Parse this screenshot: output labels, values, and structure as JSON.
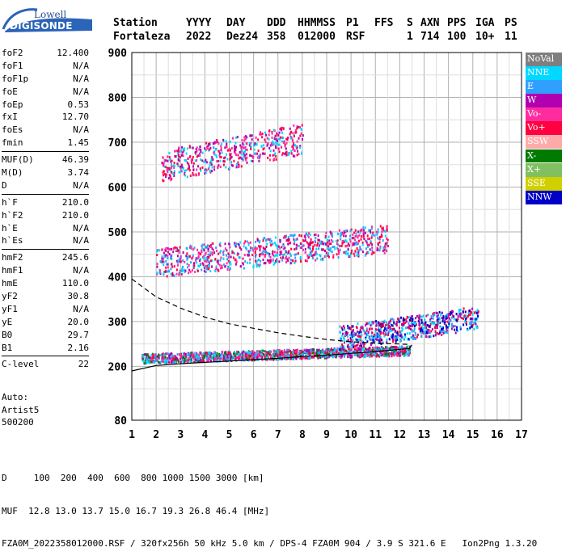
{
  "logo": {
    "line1": "Lowell",
    "line2": "DIGISONDE"
  },
  "header": {
    "row1": [
      "Station",
      "YYYY",
      "DAY",
      "DDD",
      "HHMMSS",
      "P1",
      "FFS",
      "S",
      "AXN",
      "PPS",
      "IGA",
      "PS"
    ],
    "row2": [
      "Fortaleza",
      "2022",
      "Dez24",
      "358",
      "012000",
      "RSF",
      "",
      "1",
      "714",
      "100",
      "10+",
      "11"
    ]
  },
  "params": [
    [
      {
        "label": "foF2",
        "value": "12.400"
      },
      {
        "label": "foF1",
        "value": "N/A"
      },
      {
        "label": "foF1p",
        "value": "N/A"
      },
      {
        "label": "foE",
        "value": "N/A"
      },
      {
        "label": "foEp",
        "value": "0.53"
      },
      {
        "label": "fxI",
        "value": "12.70"
      },
      {
        "label": "foEs",
        "value": "N/A"
      },
      {
        "label": "fmin",
        "value": "1.45"
      }
    ],
    [
      {
        "label": "MUF(D)",
        "value": "46.39"
      },
      {
        "label": "M(D)",
        "value": "3.74"
      },
      {
        "label": "D",
        "value": "N/A"
      }
    ],
    [
      {
        "label": "h`F",
        "value": "210.0"
      },
      {
        "label": "h`F2",
        "value": "210.0"
      },
      {
        "label": "h`E",
        "value": "N/A"
      },
      {
        "label": "h`Es",
        "value": "N/A"
      }
    ],
    [
      {
        "label": "hmF2",
        "value": "245.6"
      },
      {
        "label": "hmF1",
        "value": "N/A"
      },
      {
        "label": "hmE",
        "value": "110.0"
      },
      {
        "label": "yF2",
        "value": "30.8"
      },
      {
        "label": "yF1",
        "value": "N/A"
      },
      {
        "label": "yE",
        "value": "20.0"
      },
      {
        "label": "B0",
        "value": "29.7"
      },
      {
        "label": "B1",
        "value": "2.16"
      }
    ],
    [
      {
        "label": "C-level",
        "value": "22"
      }
    ]
  ],
  "auto": {
    "line1": "Auto:",
    "line2": "Artist5",
    "line3": "500200"
  },
  "bottom": {
    "d_line": "D     100  200  400  600  800 1000 1500 3000 [km]",
    "muf_line": "MUF  12.8 13.0 13.7 15.0 16.7 19.3 26.8 46.4 [MHz]",
    "info_line": "FZA0M_2022358012000.RSF / 320fx256h 50 kHz 5.0 km / DPS-4 FZA0M 904 / 3.9 S 321.6 E   Ion2Png 1.3.20"
  },
  "legend": [
    {
      "label": "NoVal",
      "color": "#7f7f7f"
    },
    {
      "label": "NNE",
      "color": "#00d8ff"
    },
    {
      "label": "E",
      "color": "#30a0ff"
    },
    {
      "label": "W",
      "color": "#b000b0"
    },
    {
      "label": "Vo-",
      "color": "#ff2ca0"
    },
    {
      "label": "Vo+",
      "color": "#ff0040"
    },
    {
      "label": "SSW",
      "color": "#ffaaaa"
    },
    {
      "label": "X-",
      "color": "#007a00"
    },
    {
      "label": "X+",
      "color": "#80c060"
    },
    {
      "label": "SSE",
      "color": "#d0d000"
    },
    {
      "label": "NNW",
      "color": "#0000c8"
    }
  ],
  "chart_data": {
    "type": "scatter",
    "x_ticks": [
      "1",
      "2",
      "3",
      "4",
      "5",
      "6",
      "7",
      "8",
      "9",
      "10",
      "11",
      "12",
      "13",
      "14",
      "15",
      "16",
      "17"
    ],
    "y_ticks": [
      "80",
      "200",
      "300",
      "400",
      "500",
      "600",
      "700",
      "800",
      "900"
    ],
    "xlim": [
      1,
      17
    ],
    "ylim": [
      80,
      900
    ],
    "grid": true,
    "clusters": [
      {
        "name": "F trace",
        "color_keys": [
          "Vo+",
          "Vo-",
          "X-",
          "NNE",
          "E",
          "W"
        ],
        "x": [
          1.4,
          12.4
        ],
        "y": [
          215,
          245
        ]
      },
      {
        "name": "F2 upper trace",
        "color_keys": [
          "NNW",
          "E",
          "NNE",
          "Vo+",
          "W"
        ],
        "x": [
          9.5,
          15.2
        ],
        "y": [
          255,
          330
        ]
      },
      {
        "name": "Second hop",
        "color_keys": [
          "Vo+",
          "Vo-",
          "W",
          "E",
          "NNE"
        ],
        "x": [
          2.0,
          11.5
        ],
        "y": [
          420,
          510
        ]
      },
      {
        "name": "Third hop",
        "color_keys": [
          "Vo+",
          "Vo-",
          "W",
          "NNE"
        ],
        "x": [
          2.2,
          8.0
        ],
        "y": [
          635,
          735
        ]
      }
    ],
    "profile_curve": {
      "name": "electron density profile",
      "x": [
        1.0,
        1.5,
        2.0,
        3.0,
        4.0,
        5.0,
        6.0,
        7.0,
        8.0,
        9.0,
        10.0,
        11.0,
        12.0,
        12.4
      ],
      "y": [
        395,
        375,
        355,
        330,
        310,
        295,
        285,
        275,
        267,
        260,
        255,
        252,
        250,
        249
      ]
    },
    "virtual_height_curve": {
      "name": "computed virtual height",
      "x": [
        1.0,
        2.0,
        3.0,
        4.0,
        5.0,
        6.0,
        7.0,
        8.0,
        9.0,
        10.0,
        11.0,
        12.0,
        12.4,
        12.5
      ],
      "y": [
        190,
        202,
        206,
        209,
        212,
        215,
        218,
        222,
        225,
        229,
        233,
        238,
        240,
        248
      ]
    }
  }
}
